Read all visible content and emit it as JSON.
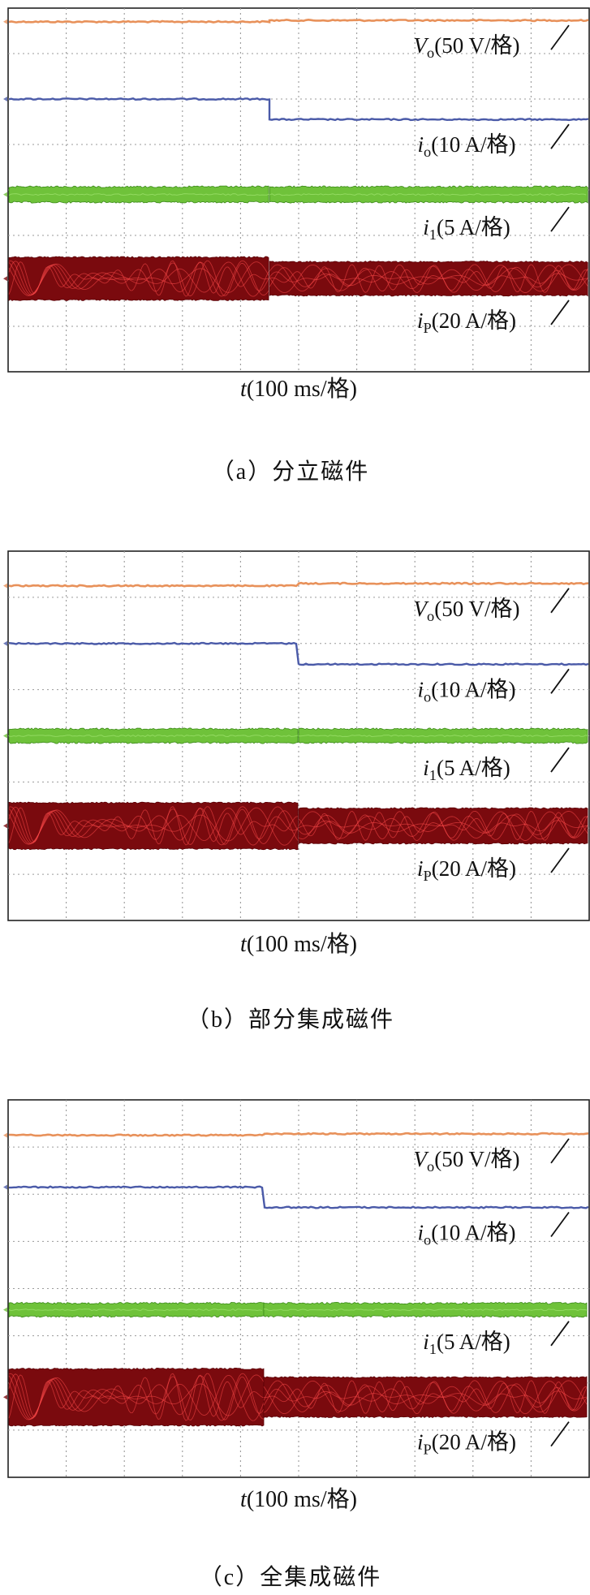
{
  "colors": {
    "vo": "#e8915a",
    "io": "#4a5aa8",
    "i1": "#6fc23a",
    "ip": "#7a0a0e",
    "ip_fringe": "#ff4a4a",
    "grid": "#9a9a9a"
  },
  "chart_data": [
    {
      "type": "line",
      "panel_id": "a",
      "caption": "（a）分立磁件",
      "xlabel": "t(100 ms/格)",
      "grid": true,
      "x_divisions": 10,
      "y_divisions": 8,
      "step_time_div": 4.5,
      "series": [
        {
          "name": "Vo(50 V/格)",
          "sym": "V",
          "sub": "o",
          "scale": "(50 V/格)",
          "kind": "line",
          "before": 7.7,
          "after": 7.73
        },
        {
          "name": "io(10 A/格)",
          "sym": "i",
          "sub": "o",
          "scale": "(10 A/格)",
          "kind": "line",
          "before": 6.0,
          "after": 5.55
        },
        {
          "name": "i1(5 A/格)",
          "sym": "i",
          "sub": "1",
          "scale": "(5 A/格)",
          "kind": "band",
          "before": 3.9,
          "after": 3.9,
          "half_band_before": 0.17,
          "half_band_after": 0.17
        },
        {
          "name": "iP(20 A/格)",
          "sym": "i",
          "sub": "P",
          "scale": "(20 A/格)",
          "kind": "band",
          "before": 2.05,
          "after": 2.05,
          "half_band_before": 0.47,
          "half_band_after": 0.37
        }
      ]
    },
    {
      "type": "line",
      "panel_id": "b",
      "caption": "（b）部分集成磁件",
      "xlabel": "t(100 ms/格)",
      "grid": true,
      "x_divisions": 10,
      "y_divisions": 8,
      "step_time_div": 5.0,
      "series": [
        {
          "name": "Vo(50 V/格)",
          "sym": "V",
          "sub": "o",
          "scale": "(50 V/格)",
          "kind": "line",
          "before": 7.25,
          "after": 7.3
        },
        {
          "name": "io(10 A/格)",
          "sym": "i",
          "sub": "o",
          "scale": "(10 A/格)",
          "kind": "line",
          "before": 6.0,
          "after": 5.55
        },
        {
          "name": "i1(5 A/格)",
          "sym": "i",
          "sub": "1",
          "scale": "(5 A/格)",
          "kind": "band",
          "before": 4.0,
          "after": 4.0,
          "half_band_before": 0.15,
          "half_band_after": 0.15
        },
        {
          "name": "iP(20 A/格)",
          "sym": "i",
          "sub": "P",
          "scale": "(20 A/格)",
          "kind": "band",
          "before": 2.05,
          "after": 2.05,
          "half_band_before": 0.5,
          "half_band_after": 0.38
        }
      ]
    },
    {
      "type": "line",
      "panel_id": "c",
      "caption": "（c）全集成磁件",
      "xlabel": "t(100 ms/格)",
      "grid": true,
      "x_divisions": 10,
      "y_divisions": 8,
      "step_time_div": 4.4,
      "series": [
        {
          "name": "Vo(50 V/格)",
          "sym": "V",
          "sub": "o",
          "scale": "(50 V/格)",
          "kind": "line",
          "before": 7.25,
          "after": 7.28
        },
        {
          "name": "io(10 A/格)",
          "sym": "i",
          "sub": "o",
          "scale": "(10 A/格)",
          "kind": "line",
          "before": 6.15,
          "after": 5.72
        },
        {
          "name": "i1(5 A/格)",
          "sym": "i",
          "sub": "1",
          "scale": "(5 A/格)",
          "kind": "band",
          "before": 3.55,
          "after": 3.55,
          "half_band_before": 0.14,
          "half_band_after": 0.14
        },
        {
          "name": "iP(20 A/格)",
          "sym": "i",
          "sub": "P",
          "scale": "(20 A/格)",
          "kind": "band",
          "before": 1.7,
          "after": 1.7,
          "half_band_before": 0.6,
          "half_band_after": 0.42
        }
      ]
    }
  ]
}
